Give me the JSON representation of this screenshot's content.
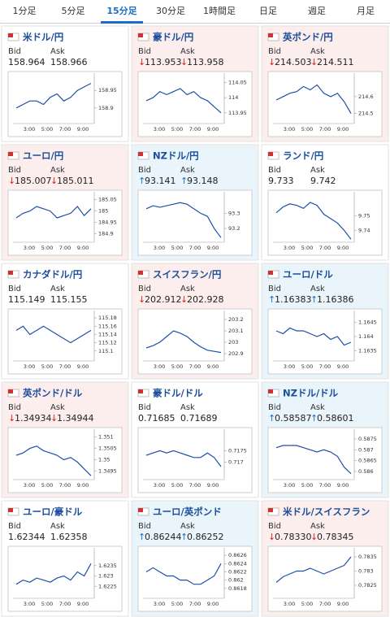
{
  "tabs": {
    "items": [
      "1分足",
      "5分足",
      "15分足",
      "30分足",
      "1時間足",
      "日足",
      "週足",
      "月足"
    ],
    "active": 2
  },
  "labels": {
    "bid": "Bid",
    "ask": "Ask",
    "times": [
      "3:00",
      "5:00",
      "7:00",
      "9:00"
    ]
  },
  "line_color": "#1f4fa8",
  "tiles": [
    {
      "name": "米ドル/円",
      "bg": "#ffffff",
      "bid": "158.964",
      "ask": "158.966",
      "yticks": [
        158.95,
        158.9
      ],
      "ylim": [
        158.86,
        158.99
      ],
      "values": [
        158.9,
        158.91,
        158.92,
        158.92,
        158.91,
        158.93,
        158.94,
        158.92,
        158.93,
        158.95,
        158.96,
        158.97
      ]
    },
    {
      "name": "豪ドル/円",
      "bg": "#fdeeee",
      "dir": "↓",
      "bid": "113.953",
      "ask": "113.958",
      "yticks": [
        114.05,
        114,
        113.95
      ],
      "ylim": [
        113.92,
        114.07
      ],
      "values": [
        113.99,
        114.0,
        114.02,
        114.01,
        114.02,
        114.03,
        114.01,
        114.02,
        114.0,
        113.99,
        113.97,
        113.95
      ]
    },
    {
      "name": "英ポンド/円",
      "bg": "#fdeeee",
      "dir": "↓",
      "bid": "214.503",
      "ask": "214.511",
      "yticks": [
        214.6,
        214.5
      ],
      "ylim": [
        214.45,
        214.72
      ],
      "values": [
        214.58,
        214.6,
        214.62,
        214.63,
        214.66,
        214.64,
        214.67,
        214.62,
        214.6,
        214.62,
        214.57,
        214.5
      ]
    },
    {
      "name": "ユーロ/円",
      "bg": "#fdeeee",
      "dir": "↓",
      "bid": "185.007",
      "ask": "185.011",
      "yticks": [
        185.05,
        185,
        184.95,
        184.9
      ],
      "ylim": [
        184.87,
        185.07
      ],
      "values": [
        184.97,
        184.99,
        185.0,
        185.02,
        185.01,
        185.0,
        184.97,
        184.98,
        184.99,
        185.02,
        184.98,
        185.01
      ]
    },
    {
      "name": "NZドル/円",
      "bg": "#eaf4fb",
      "dir": "↑",
      "bid": "93.141",
      "ask": "93.148",
      "yticks": [
        93.3,
        93.2
      ],
      "ylim": [
        93.12,
        93.42
      ],
      "values": [
        93.33,
        93.35,
        93.34,
        93.35,
        93.36,
        93.37,
        93.36,
        93.33,
        93.3,
        93.28,
        93.2,
        93.14
      ]
    },
    {
      "name": "ランド/円",
      "bg": "#ffffff",
      "bid": "9.733",
      "ask": "9.742",
      "yticks": [
        9.75,
        9.74
      ],
      "ylim": [
        9.733,
        9.764
      ],
      "values": [
        9.752,
        9.756,
        9.758,
        9.757,
        9.755,
        9.759,
        9.757,
        9.751,
        9.748,
        9.745,
        9.74,
        9.734
      ]
    },
    {
      "name": "カナダドル/円",
      "bg": "#ffffff",
      "bid": "115.149",
      "ask": "115.155",
      "yticks": [
        115.18,
        115.16,
        115.14,
        115.12,
        115.1
      ],
      "ylim": [
        115.08,
        115.19
      ],
      "values": [
        115.15,
        115.16,
        115.14,
        115.15,
        115.16,
        115.15,
        115.14,
        115.13,
        115.12,
        115.13,
        115.14,
        115.15
      ]
    },
    {
      "name": "スイスフラン/円",
      "bg": "#fdeeee",
      "dir": "↓",
      "bid": "202.912",
      "ask": "202.928",
      "yticks": [
        203.2,
        203.1,
        203,
        202.9
      ],
      "ylim": [
        202.85,
        203.25
      ],
      "values": [
        202.95,
        202.97,
        203.0,
        203.05,
        203.1,
        203.08,
        203.05,
        203.0,
        202.96,
        202.93,
        202.92,
        202.91
      ]
    },
    {
      "name": "ユーロ/ドル",
      "bg": "#eaf4fb",
      "dir": "↑",
      "bid": "1.16383",
      "ask": "1.16386",
      "yticks": [
        1.1645,
        1.164,
        1.1635
      ],
      "ylim": [
        1.1632,
        1.1648
      ],
      "values": [
        1.1642,
        1.1641,
        1.1643,
        1.1642,
        1.1642,
        1.1641,
        1.164,
        1.1641,
        1.1639,
        1.164,
        1.1637,
        1.1638
      ]
    },
    {
      "name": "英ポンド/ドル",
      "bg": "#fdeeee",
      "dir": "↓",
      "bid": "1.34934",
      "ask": "1.34944",
      "yticks": [
        1.351,
        1.3505,
        1.35,
        1.3495
      ],
      "ylim": [
        1.3492,
        1.3512
      ],
      "values": [
        1.3502,
        1.3503,
        1.3505,
        1.3506,
        1.3504,
        1.3503,
        1.3502,
        1.35,
        1.3501,
        1.3499,
        1.3496,
        1.3493
      ]
    },
    {
      "name": "豪ドル/ドル",
      "bg": "#ffffff",
      "bid": "0.71685",
      "ask": "0.71689",
      "yticks": [
        0.7175,
        0.717
      ],
      "ylim": [
        0.7163,
        0.7183
      ],
      "values": [
        0.7173,
        0.7174,
        0.7175,
        0.7174,
        0.7175,
        0.7174,
        0.7173,
        0.7172,
        0.7172,
        0.7174,
        0.7172,
        0.7168
      ]
    },
    {
      "name": "NZドル/ドル",
      "bg": "#eaf4fb",
      "dir": "↑",
      "bid": "0.58587",
      "ask": "0.58601",
      "yticks": [
        0.5875,
        0.587,
        0.5865,
        0.586
      ],
      "ylim": [
        0.5857,
        0.5878
      ],
      "values": [
        0.5871,
        0.5872,
        0.5872,
        0.5872,
        0.5871,
        0.587,
        0.5869,
        0.587,
        0.5869,
        0.5867,
        0.5862,
        0.5859
      ]
    },
    {
      "name": "ユーロ/豪ドル",
      "bg": "#ffffff",
      "bid": "1.62344",
      "ask": "1.62358",
      "yticks": [
        1.6235,
        1.623,
        1.6225
      ],
      "ylim": [
        1.622,
        1.6242
      ],
      "values": [
        1.6226,
        1.6228,
        1.6227,
        1.6229,
        1.6228,
        1.6227,
        1.6229,
        1.623,
        1.6228,
        1.6232,
        1.623,
        1.6236
      ]
    },
    {
      "name": "ユーロ/英ポンド",
      "bg": "#eaf4fb",
      "dir": "↑",
      "bid": "0.86244",
      "ask": "0.86252",
      "yticks": [
        0.8626,
        0.8624,
        0.8622,
        0.862,
        0.8618
      ],
      "ylim": [
        0.8616,
        0.8627
      ],
      "values": [
        0.8622,
        0.8623,
        0.8622,
        0.8621,
        0.8621,
        0.862,
        0.862,
        0.8619,
        0.8619,
        0.862,
        0.8621,
        0.8624
      ]
    },
    {
      "name": "米ドル/スイスフラン",
      "bg": "#fdeeee",
      "dir": "↓",
      "bid": "0.78330",
      "ask": "0.78345",
      "yticks": [
        0.7835,
        0.783,
        0.7825
      ],
      "ylim": [
        0.7821,
        0.7837
      ],
      "values": [
        0.7826,
        0.7828,
        0.7829,
        0.783,
        0.783,
        0.7831,
        0.783,
        0.7829,
        0.783,
        0.7831,
        0.7832,
        0.7835
      ]
    }
  ]
}
